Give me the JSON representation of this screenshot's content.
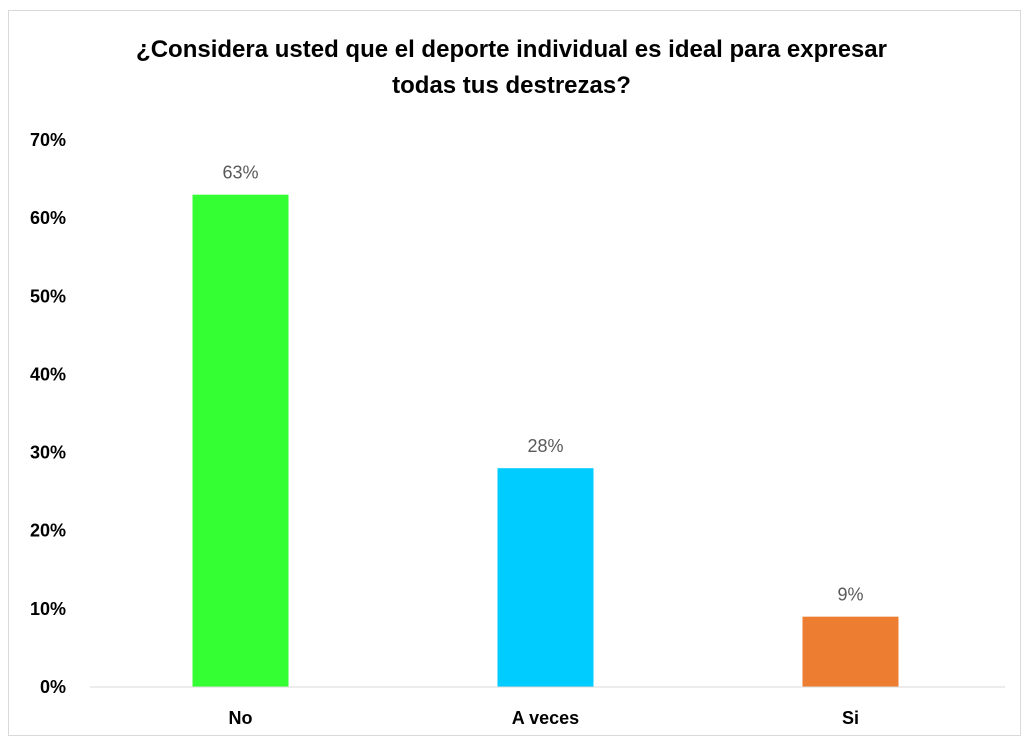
{
  "chart_data": {
    "type": "bar",
    "title_lines": [
      "¿Considera usted que el deporte individual es ideal para expresar",
      "todas tus destrezas?"
    ],
    "categories": [
      "No",
      "A veces",
      "Si"
    ],
    "values": [
      63,
      28,
      9
    ],
    "data_labels": [
      "63%",
      "28%",
      "9%"
    ],
    "colors": [
      "#33ff33",
      "#00ccff",
      "#ed7d31"
    ],
    "ylim": [
      0,
      70
    ],
    "yticks": [
      0,
      10,
      20,
      30,
      40,
      50,
      60,
      70
    ],
    "ytick_labels": [
      "0%",
      "10%",
      "20%",
      "30%",
      "40%",
      "50%",
      "60%",
      "70%"
    ],
    "grid": false,
    "legend": false
  }
}
